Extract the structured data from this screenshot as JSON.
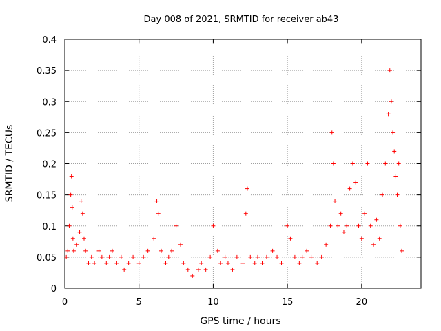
{
  "chart_data": {
    "type": "scatter",
    "title": "Day 008 of 2021, SRMTID for receiver ab43",
    "xlabel": "GPS time / hours",
    "ylabel": "SRMTID / TECUs",
    "xlim": [
      0,
      24
    ],
    "ylim": [
      0,
      0.4
    ],
    "xticks": [
      "0",
      "5",
      "10",
      "15",
      "20"
    ],
    "yticks": [
      "0",
      "0.05",
      "0.1",
      "0.15",
      "0.2",
      "0.25",
      "0.3",
      "0.35",
      "0.4"
    ],
    "grid": true,
    "marker": "+",
    "series_color": "#ff0000",
    "series": [
      {
        "name": "SRMTID",
        "x": [
          0.1,
          0.2,
          0.3,
          0.4,
          0.45,
          0.5,
          0.55,
          0.6,
          0.8,
          1.0,
          1.1,
          1.2,
          1.3,
          1.4,
          1.6,
          1.8,
          2.0,
          2.3,
          2.5,
          2.8,
          3.0,
          3.2,
          3.5,
          3.8,
          4.0,
          4.3,
          4.6,
          5.0,
          5.3,
          5.6,
          6.0,
          6.2,
          6.3,
          6.5,
          6.8,
          7.0,
          7.2,
          7.5,
          7.8,
          8.0,
          8.3,
          8.6,
          9.0,
          9.2,
          9.5,
          9.8,
          10.0,
          10.3,
          10.5,
          10.8,
          11.0,
          11.3,
          11.6,
          12.0,
          12.2,
          12.3,
          12.5,
          12.8,
          13.0,
          13.3,
          13.6,
          14.0,
          14.3,
          14.6,
          15.0,
          15.2,
          15.5,
          15.8,
          16.0,
          16.3,
          16.6,
          17.0,
          17.3,
          17.6,
          17.9,
          18.0,
          18.1,
          18.2,
          18.4,
          18.6,
          18.8,
          19.0,
          19.2,
          19.4,
          19.6,
          19.8,
          20.0,
          20.2,
          20.4,
          20.6,
          20.8,
          21.0,
          21.2,
          21.4,
          21.6,
          21.8,
          21.9,
          22.0,
          22.1,
          22.2,
          22.3,
          22.4,
          22.5,
          22.6,
          22.7
        ],
        "y": [
          0.05,
          0.06,
          0.1,
          0.15,
          0.18,
          0.13,
          0.08,
          0.06,
          0.07,
          0.09,
          0.14,
          0.12,
          0.08,
          0.06,
          0.04,
          0.05,
          0.04,
          0.06,
          0.05,
          0.04,
          0.05,
          0.06,
          0.04,
          0.05,
          0.03,
          0.04,
          0.05,
          0.04,
          0.05,
          0.06,
          0.08,
          0.14,
          0.12,
          0.06,
          0.04,
          0.05,
          0.06,
          0.1,
          0.07,
          0.04,
          0.03,
          0.02,
          0.03,
          0.04,
          0.03,
          0.05,
          0.1,
          0.06,
          0.04,
          0.05,
          0.04,
          0.03,
          0.05,
          0.04,
          0.12,
          0.16,
          0.05,
          0.04,
          0.05,
          0.04,
          0.05,
          0.06,
          0.05,
          0.04,
          0.1,
          0.08,
          0.05,
          0.04,
          0.05,
          0.06,
          0.05,
          0.04,
          0.05,
          0.07,
          0.1,
          0.25,
          0.2,
          0.14,
          0.1,
          0.12,
          0.09,
          0.1,
          0.16,
          0.2,
          0.17,
          0.1,
          0.08,
          0.12,
          0.2,
          0.1,
          0.07,
          0.11,
          0.08,
          0.15,
          0.2,
          0.28,
          0.35,
          0.3,
          0.25,
          0.22,
          0.18,
          0.15,
          0.2,
          0.1,
          0.06
        ]
      }
    ]
  }
}
